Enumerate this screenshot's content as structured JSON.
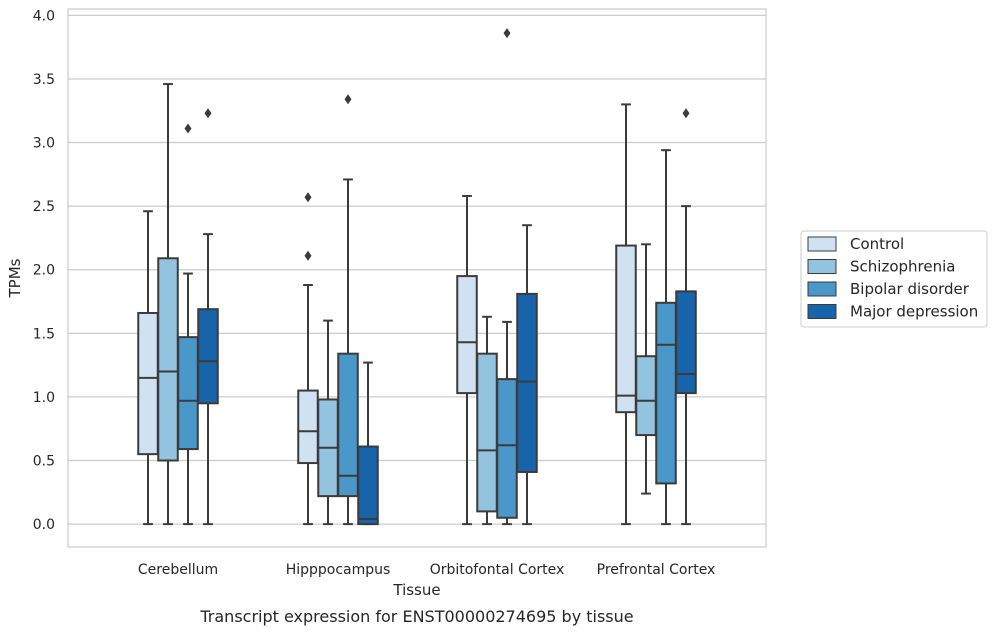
{
  "chart_data": {
    "type": "boxplot",
    "xlabel": "Tissue",
    "ylabel": "TPMs",
    "caption": "Transcript expression for ENST00000274695 by tissue",
    "ylim": [
      -0.18,
      4.05
    ],
    "yticks": [
      "0.0",
      "0.5",
      "1.0",
      "1.5",
      "2.0",
      "2.5",
      "3.0",
      "3.5",
      "4.0"
    ],
    "grid": true,
    "legend_position": "right",
    "categories": [
      "Cerebellum",
      "Hipppocampus",
      "Orbitofontal Cortex",
      "Prefrontal Cortex"
    ],
    "series": [
      {
        "name": "Control",
        "color": "#d0e1f1",
        "boxes": [
          {
            "q1": 0.55,
            "median": 1.15,
            "q3": 1.66,
            "whislo": 0.0,
            "whishi": 2.46,
            "fliers": []
          },
          {
            "q1": 0.48,
            "median": 0.73,
            "q3": 1.05,
            "whislo": 0.0,
            "whishi": 1.88,
            "fliers": [
              2.11,
              2.57
            ]
          },
          {
            "q1": 1.03,
            "median": 1.43,
            "q3": 1.95,
            "whislo": 0.0,
            "whishi": 2.58,
            "fliers": []
          },
          {
            "q1": 0.88,
            "median": 1.01,
            "q3": 2.19,
            "whislo": 0.0,
            "whishi": 3.3,
            "fliers": []
          }
        ]
      },
      {
        "name": "Schizophrenia",
        "color": "#93c3df",
        "boxes": [
          {
            "q1": 0.5,
            "median": 1.2,
            "q3": 2.09,
            "whislo": 0.0,
            "whishi": 3.46,
            "fliers": []
          },
          {
            "q1": 0.22,
            "median": 0.6,
            "q3": 0.98,
            "whislo": 0.0,
            "whishi": 1.6,
            "fliers": []
          },
          {
            "q1": 0.1,
            "median": 0.58,
            "q3": 1.34,
            "whislo": 0.0,
            "whishi": 1.63,
            "fliers": []
          },
          {
            "q1": 0.7,
            "median": 0.97,
            "q3": 1.32,
            "whislo": 0.24,
            "whishi": 2.2,
            "fliers": []
          }
        ]
      },
      {
        "name": "Bipolar disorder",
        "color": "#4a97c9",
        "boxes": [
          {
            "q1": 0.59,
            "median": 0.97,
            "q3": 1.47,
            "whislo": 0.0,
            "whishi": 1.97,
            "fliers": [
              3.11
            ]
          },
          {
            "q1": 0.22,
            "median": 0.38,
            "q3": 1.34,
            "whislo": 0.0,
            "whishi": 2.71,
            "fliers": [
              3.34
            ]
          },
          {
            "q1": 0.05,
            "median": 0.62,
            "q3": 1.14,
            "whislo": 0.0,
            "whishi": 1.59,
            "fliers": [
              3.86
            ]
          },
          {
            "q1": 0.32,
            "median": 1.41,
            "q3": 1.74,
            "whislo": 0.0,
            "whishi": 2.94,
            "fliers": []
          }
        ]
      },
      {
        "name": "Major depression",
        "color": "#1764ab",
        "boxes": [
          {
            "q1": 0.95,
            "median": 1.28,
            "q3": 1.69,
            "whislo": 0.0,
            "whishi": 2.28,
            "fliers": [
              3.23
            ]
          },
          {
            "q1": 0.0,
            "median": 0.04,
            "q3": 0.61,
            "whislo": 0.0,
            "whishi": 1.27,
            "fliers": []
          },
          {
            "q1": 0.41,
            "median": 1.12,
            "q3": 1.81,
            "whislo": 0.0,
            "whishi": 2.35,
            "fliers": []
          },
          {
            "q1": 1.03,
            "median": 1.18,
            "q3": 1.83,
            "whislo": 0.0,
            "whishi": 2.5,
            "fliers": [
              3.23
            ]
          }
        ]
      }
    ]
  }
}
